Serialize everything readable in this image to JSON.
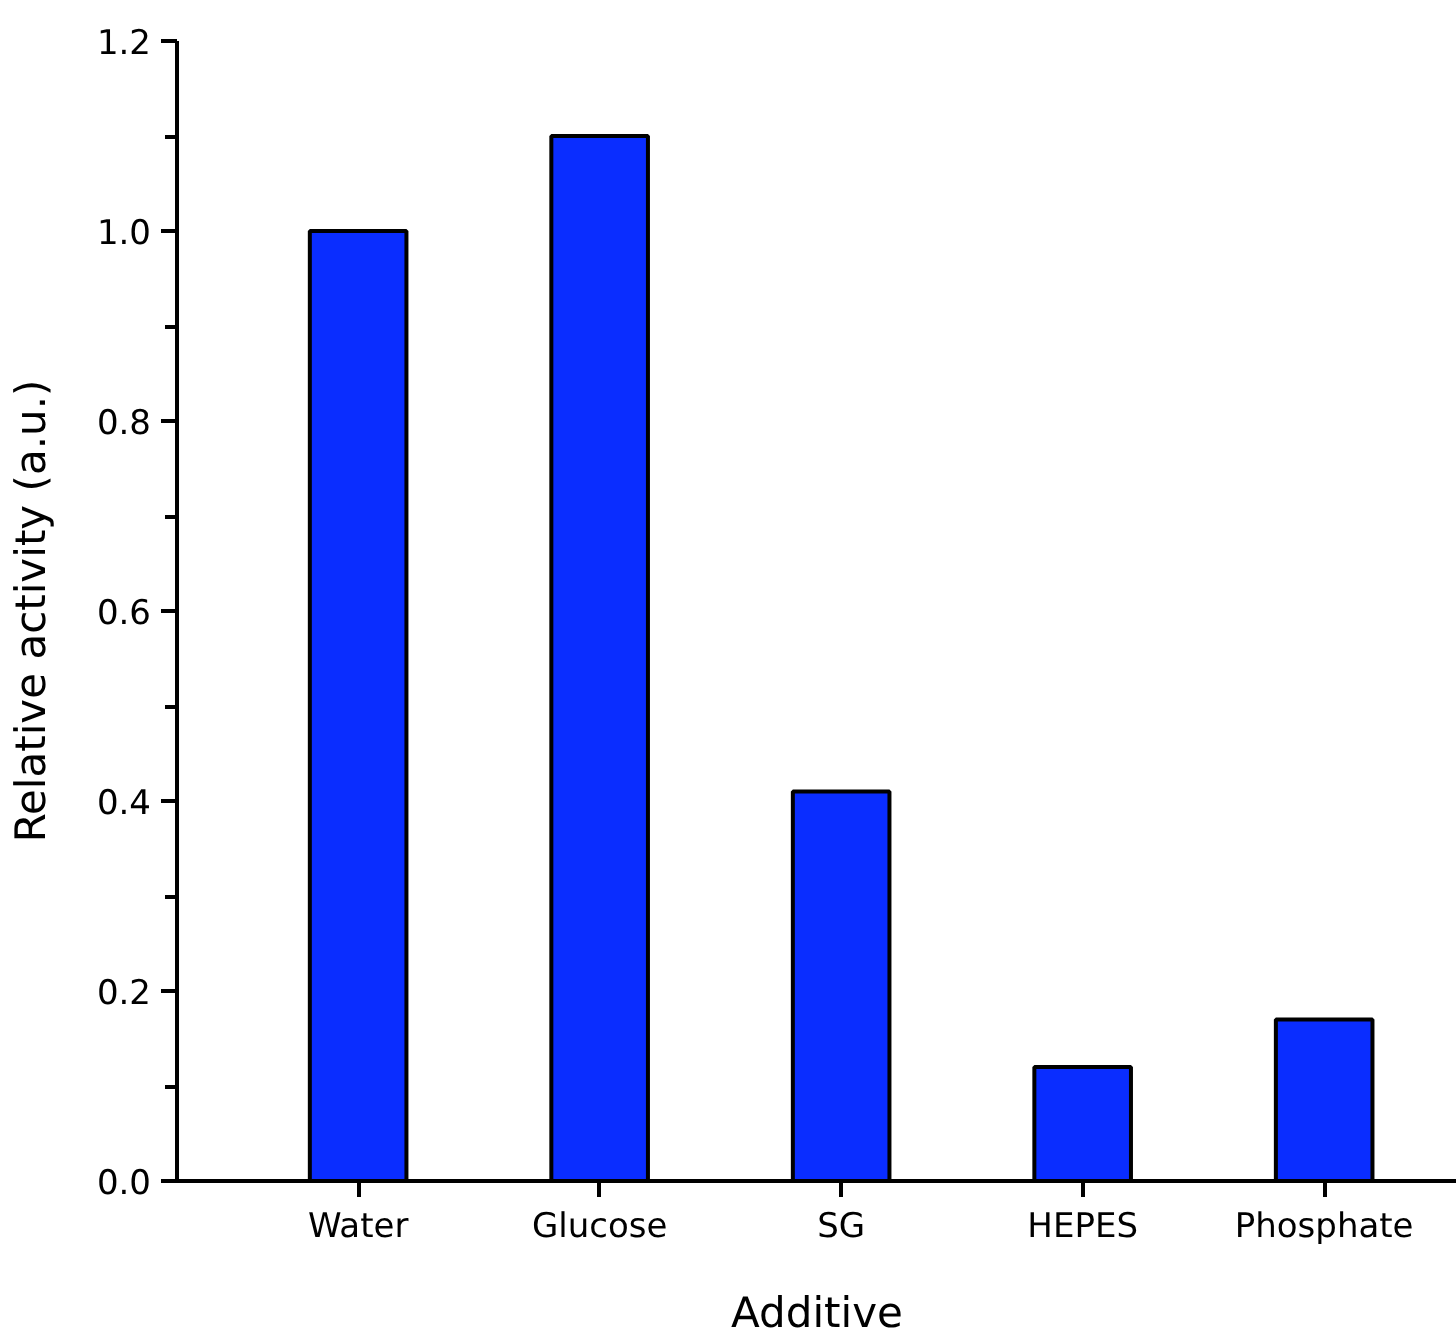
{
  "chart_data": {
    "type": "bar",
    "xlabel": "Additive",
    "ylabel": "Relative activity (a.u.)",
    "categories": [
      "Water",
      "Glucose",
      "SG",
      "HEPES",
      "Phosphate"
    ],
    "values": [
      1.0,
      1.1,
      0.41,
      0.12,
      0.17
    ],
    "color": "#0a2dff",
    "ylim": [
      0,
      1.2
    ],
    "yticks": [
      {
        "value": 0,
        "label": "0.0"
      },
      {
        "value": 0.1,
        "label": null
      },
      {
        "value": 0.2,
        "label": "0.2"
      },
      {
        "value": 0.3,
        "label": null
      },
      {
        "value": 0.4,
        "label": "0.4"
      },
      {
        "value": 0.5,
        "label": null
      },
      {
        "value": 0.6,
        "label": "0.6"
      },
      {
        "value": 0.7,
        "label": null
      },
      {
        "value": 0.8,
        "label": "0.8"
      },
      {
        "value": 0.9,
        "label": null
      },
      {
        "value": 1.0,
        "label": "1.0"
      },
      {
        "value": 1.1,
        "label": null
      },
      {
        "value": 1.2,
        "label": "1.2"
      }
    ],
    "grid": false
  }
}
